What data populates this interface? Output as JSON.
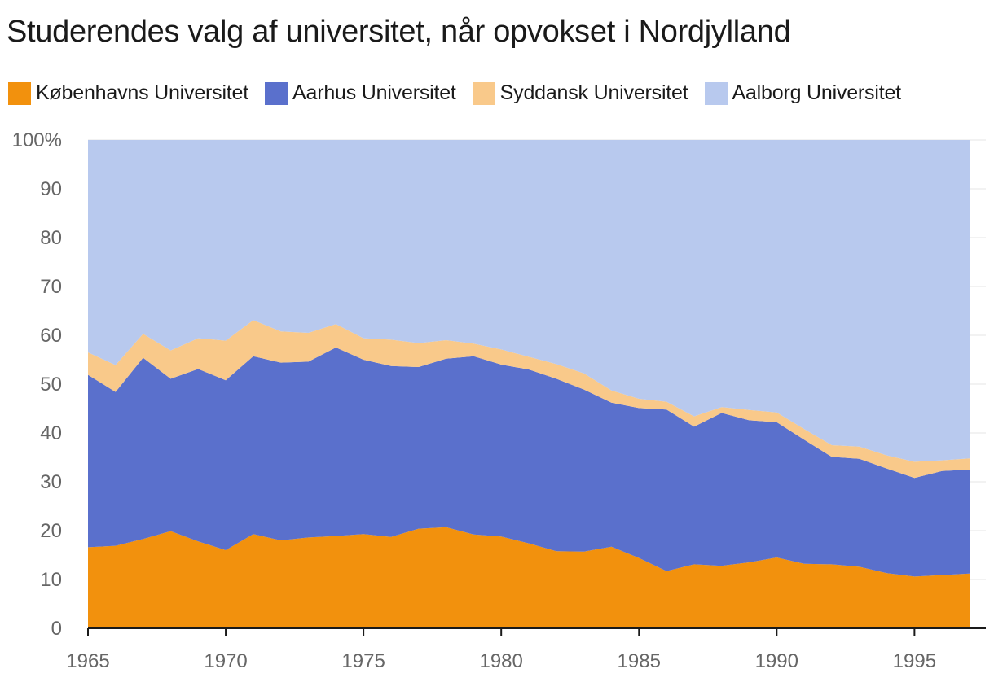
{
  "title": "Studerendes valg af universitet, når opvokset i Nordjylland",
  "chart_data": {
    "type": "area",
    "stacked": true,
    "normalized": true,
    "title": "Studerendes valg af universitet, når opvokset i Nordjylland",
    "xlabel": "",
    "ylabel": "",
    "x": [
      1965,
      1966,
      1967,
      1968,
      1969,
      1970,
      1971,
      1972,
      1973,
      1974,
      1975,
      1976,
      1977,
      1978,
      1979,
      1980,
      1981,
      1982,
      1983,
      1984,
      1985,
      1986,
      1987,
      1988,
      1989,
      1990,
      1991,
      1992,
      1993,
      1994,
      1995,
      1996,
      1997
    ],
    "xlim": [
      1965,
      1997
    ],
    "ylim": [
      0,
      100
    ],
    "x_ticks": [
      "1965",
      "1970",
      "1975",
      "1980",
      "1985",
      "1990",
      "1995"
    ],
    "y_ticks": [
      "0",
      "10",
      "20",
      "30",
      "40",
      "50",
      "60",
      "70",
      "80",
      "90",
      "100%"
    ],
    "grid": true,
    "legend_position": "top-left",
    "series": [
      {
        "name": "Københavns Universitet",
        "color": "#f2910d",
        "values": [
          16.6,
          16.9,
          18.3,
          19.9,
          17.8,
          16.0,
          19.3,
          18.0,
          18.6,
          18.9,
          19.3,
          18.7,
          20.4,
          20.7,
          19.2,
          18.8,
          17.4,
          15.8,
          15.7,
          16.7,
          14.4,
          11.7,
          13.1,
          12.8,
          13.5,
          14.5,
          13.2,
          13.1,
          12.6,
          11.3,
          10.6,
          10.9,
          11.2
        ]
      },
      {
        "name": "Aarhus Universitet",
        "color": "#5a70cc",
        "values": [
          35.3,
          31.5,
          37.1,
          31.2,
          35.3,
          34.8,
          36.4,
          36.4,
          36.0,
          38.6,
          35.7,
          35.0,
          33.1,
          34.5,
          36.5,
          35.2,
          35.6,
          35.3,
          33.2,
          29.5,
          30.7,
          33.1,
          28.2,
          31.3,
          29.1,
          27.7,
          25.4,
          22.0,
          22.1,
          21.4,
          20.2,
          21.3,
          21.3
        ]
      },
      {
        "name": "Syddansk Universitet",
        "color": "#f9c98a",
        "values": [
          4.6,
          5.5,
          4.9,
          5.8,
          6.3,
          8.1,
          7.4,
          6.4,
          5.9,
          4.8,
          4.4,
          5.4,
          4.9,
          3.8,
          2.6,
          3.1,
          2.6,
          3.0,
          3.3,
          2.5,
          1.9,
          1.6,
          2.1,
          1.2,
          2.1,
          2.0,
          2.2,
          2.4,
          2.5,
          2.7,
          3.3,
          2.2,
          2.3
        ]
      },
      {
        "name": "Aalborg Universitet",
        "color": "#b8c9ee",
        "values": [
          43.5,
          46.1,
          39.7,
          43.1,
          40.6,
          41.1,
          36.9,
          39.2,
          39.5,
          37.7,
          40.6,
          40.9,
          41.6,
          41.0,
          41.7,
          42.9,
          44.4,
          45.9,
          47.8,
          51.3,
          53.0,
          53.6,
          56.6,
          54.7,
          55.3,
          55.8,
          59.2,
          62.5,
          62.8,
          64.6,
          65.9,
          65.6,
          65.2
        ]
      }
    ]
  },
  "colors": {
    "axis": "#1a1a1a",
    "grid": "#e5e5e5",
    "tick_label": "#666666"
  }
}
